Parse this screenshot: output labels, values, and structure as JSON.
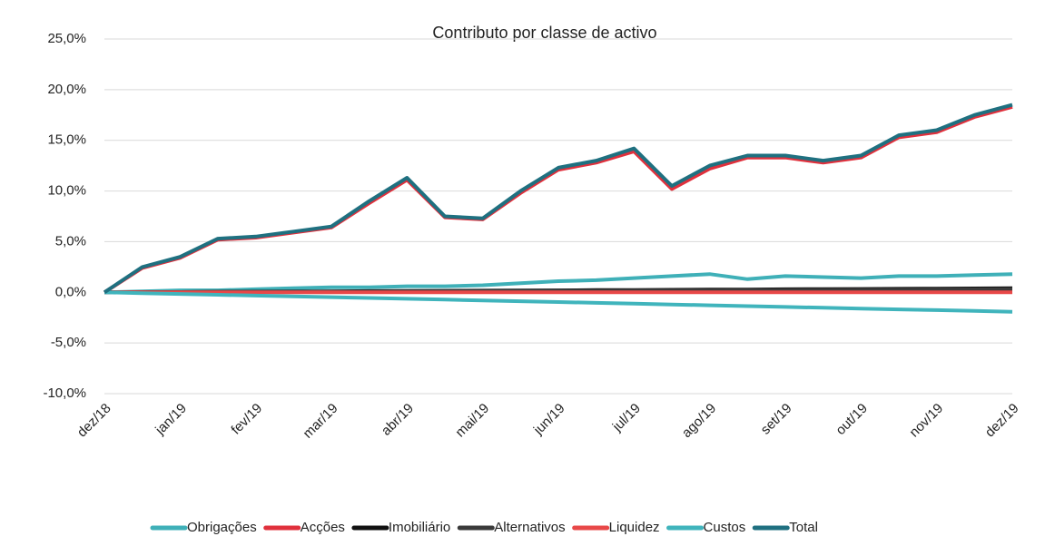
{
  "chart_data": {
    "type": "line",
    "title": "Contributo por classe de activo",
    "categories": [
      "dez/18",
      null,
      "jan/19",
      null,
      "fev/19",
      null,
      "mar/19",
      null,
      "abr/19",
      null,
      "mai/19",
      null,
      "jun/19",
      null,
      "jul/19",
      null,
      "ago/19",
      null,
      "set/19",
      null,
      "out/19",
      null,
      "nov/19",
      null,
      "dez/19"
    ],
    "ylim": [
      -10,
      25
    ],
    "yticks": [
      {
        "value": -10,
        "label": "-10,0%"
      },
      {
        "value": -5,
        "label": "-5,0%"
      },
      {
        "value": 0,
        "label": "0,0%"
      },
      {
        "value": 5,
        "label": "5,0%"
      },
      {
        "value": 10,
        "label": "10,0%"
      },
      {
        "value": 15,
        "label": "15,0%"
      },
      {
        "value": 20,
        "label": "20,0%"
      },
      {
        "value": 25,
        "label": "25,0%"
      }
    ],
    "grid": true,
    "legend": "bottom",
    "series": [
      {
        "name": "Obrigações",
        "color": "#3fb0b8",
        "values": [
          0,
          0.1,
          0.2,
          0.2,
          0.3,
          0.4,
          0.5,
          0.5,
          0.6,
          0.6,
          0.7,
          0.9,
          1.1,
          1.2,
          1.4,
          1.6,
          1.8,
          1.3,
          1.6,
          1.5,
          1.4,
          1.6,
          1.6,
          1.7,
          1.8
        ]
      },
      {
        "name": "Acções",
        "color": "#e0303c",
        "values": [
          0,
          2.4,
          3.4,
          5.2,
          5.4,
          5.9,
          6.4,
          8.8,
          11.1,
          7.4,
          7.2,
          9.8,
          12.1,
          12.8,
          13.9,
          10.2,
          12.2,
          13.3,
          13.3,
          12.8,
          13.3,
          15.3,
          15.8,
          17.3,
          18.3
        ]
      },
      {
        "name": "Imobiliário",
        "color": "#111111",
        "values": [
          0,
          0.02,
          0.03,
          0.05,
          0.07,
          0.08,
          0.1,
          0.12,
          0.13,
          0.15,
          0.17,
          0.18,
          0.2,
          0.22,
          0.23,
          0.25,
          0.27,
          0.28,
          0.3,
          0.32,
          0.33,
          0.35,
          0.37,
          0.38,
          0.4
        ]
      },
      {
        "name": "Alternativos",
        "color": "#3a3a3a",
        "values": [
          0,
          0.01,
          0.03,
          0.04,
          0.05,
          0.06,
          0.08,
          0.09,
          0.1,
          0.11,
          0.13,
          0.14,
          0.15,
          0.16,
          0.18,
          0.19,
          0.2,
          0.21,
          0.23,
          0.24,
          0.25,
          0.26,
          0.28,
          0.29,
          0.3
        ]
      },
      {
        "name": "Liquidez",
        "color": "#e84848",
        "values": [
          0,
          0,
          0,
          0,
          0,
          0,
          0,
          0,
          0,
          0,
          0,
          0,
          0,
          0,
          0,
          0,
          0,
          0,
          0,
          0,
          0,
          0,
          0,
          0,
          0
        ]
      },
      {
        "name": "Custos",
        "color": "#40b4bc",
        "values": [
          0,
          -0.08,
          -0.16,
          -0.24,
          -0.32,
          -0.4,
          -0.48,
          -0.56,
          -0.64,
          -0.72,
          -0.8,
          -0.88,
          -0.96,
          -1.04,
          -1.12,
          -1.2,
          -1.28,
          -1.36,
          -1.44,
          -1.52,
          -1.6,
          -1.68,
          -1.76,
          -1.84,
          -1.92
        ]
      },
      {
        "name": "Total",
        "color": "#1f7080",
        "values": [
          0,
          2.5,
          3.5,
          5.3,
          5.5,
          6,
          6.5,
          9,
          11.3,
          7.5,
          7.3,
          10,
          12.3,
          13,
          14.2,
          10.5,
          12.5,
          13.5,
          13.5,
          13,
          13.5,
          15.5,
          16,
          17.5,
          18.5
        ]
      }
    ]
  }
}
